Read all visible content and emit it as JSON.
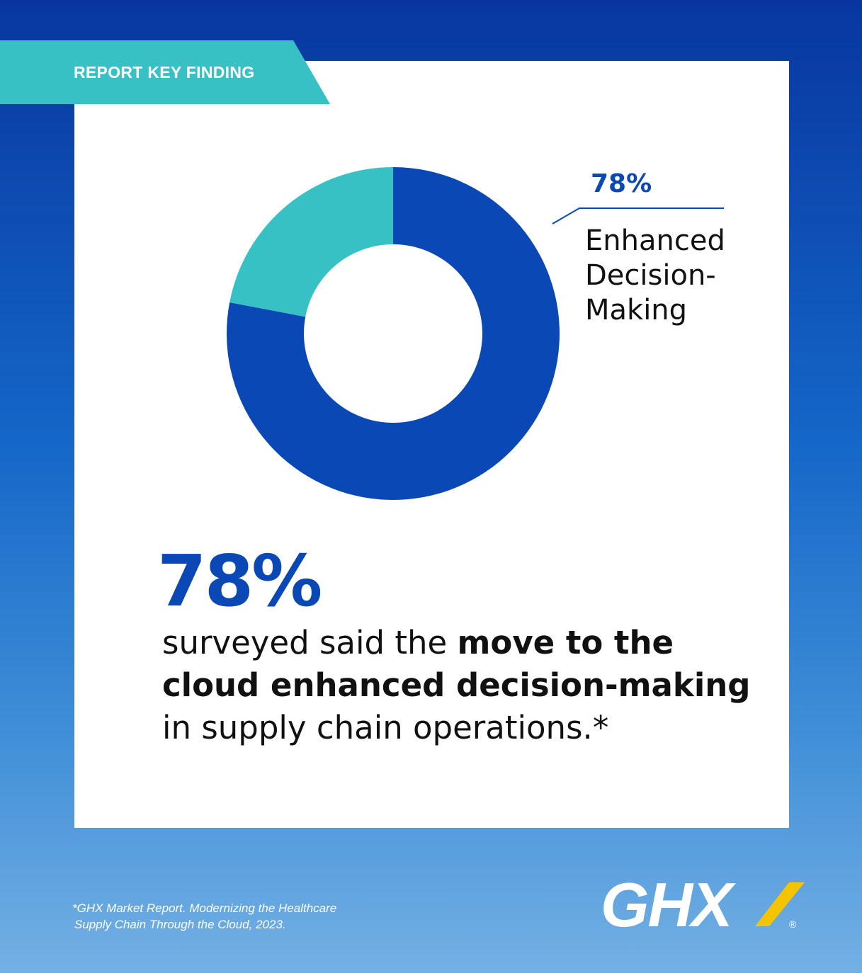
{
  "banner": {
    "text": "REPORT KEY FINDING"
  },
  "chart_data": {
    "type": "pie",
    "donut": true,
    "slices": [
      {
        "label": "Enhanced Decision-Making",
        "value": 78,
        "color": "#0a49b5"
      },
      {
        "label": "",
        "value": 22,
        "color": "#38c1c4"
      }
    ],
    "callout": {
      "value_label": "78%",
      "name_lines": [
        "Enhanced",
        "Decision-",
        "Making"
      ]
    }
  },
  "headline": {
    "stat": "78%",
    "text_before": "surveyed said the ",
    "text_bold": "move to the cloud enhanced decision-making",
    "text_after": " in supply chain operations.*"
  },
  "footnote": {
    "line1": "*GHX Market Report. Modernizing the Healthcare",
    "line2": "Supply Chain Through the Cloud, 2023."
  },
  "logo": {
    "text": "GHX",
    "registered": "®",
    "accent_color": "#f5c400"
  },
  "colors": {
    "primary_blue": "#0a49b5",
    "teal": "#38c1c4"
  }
}
